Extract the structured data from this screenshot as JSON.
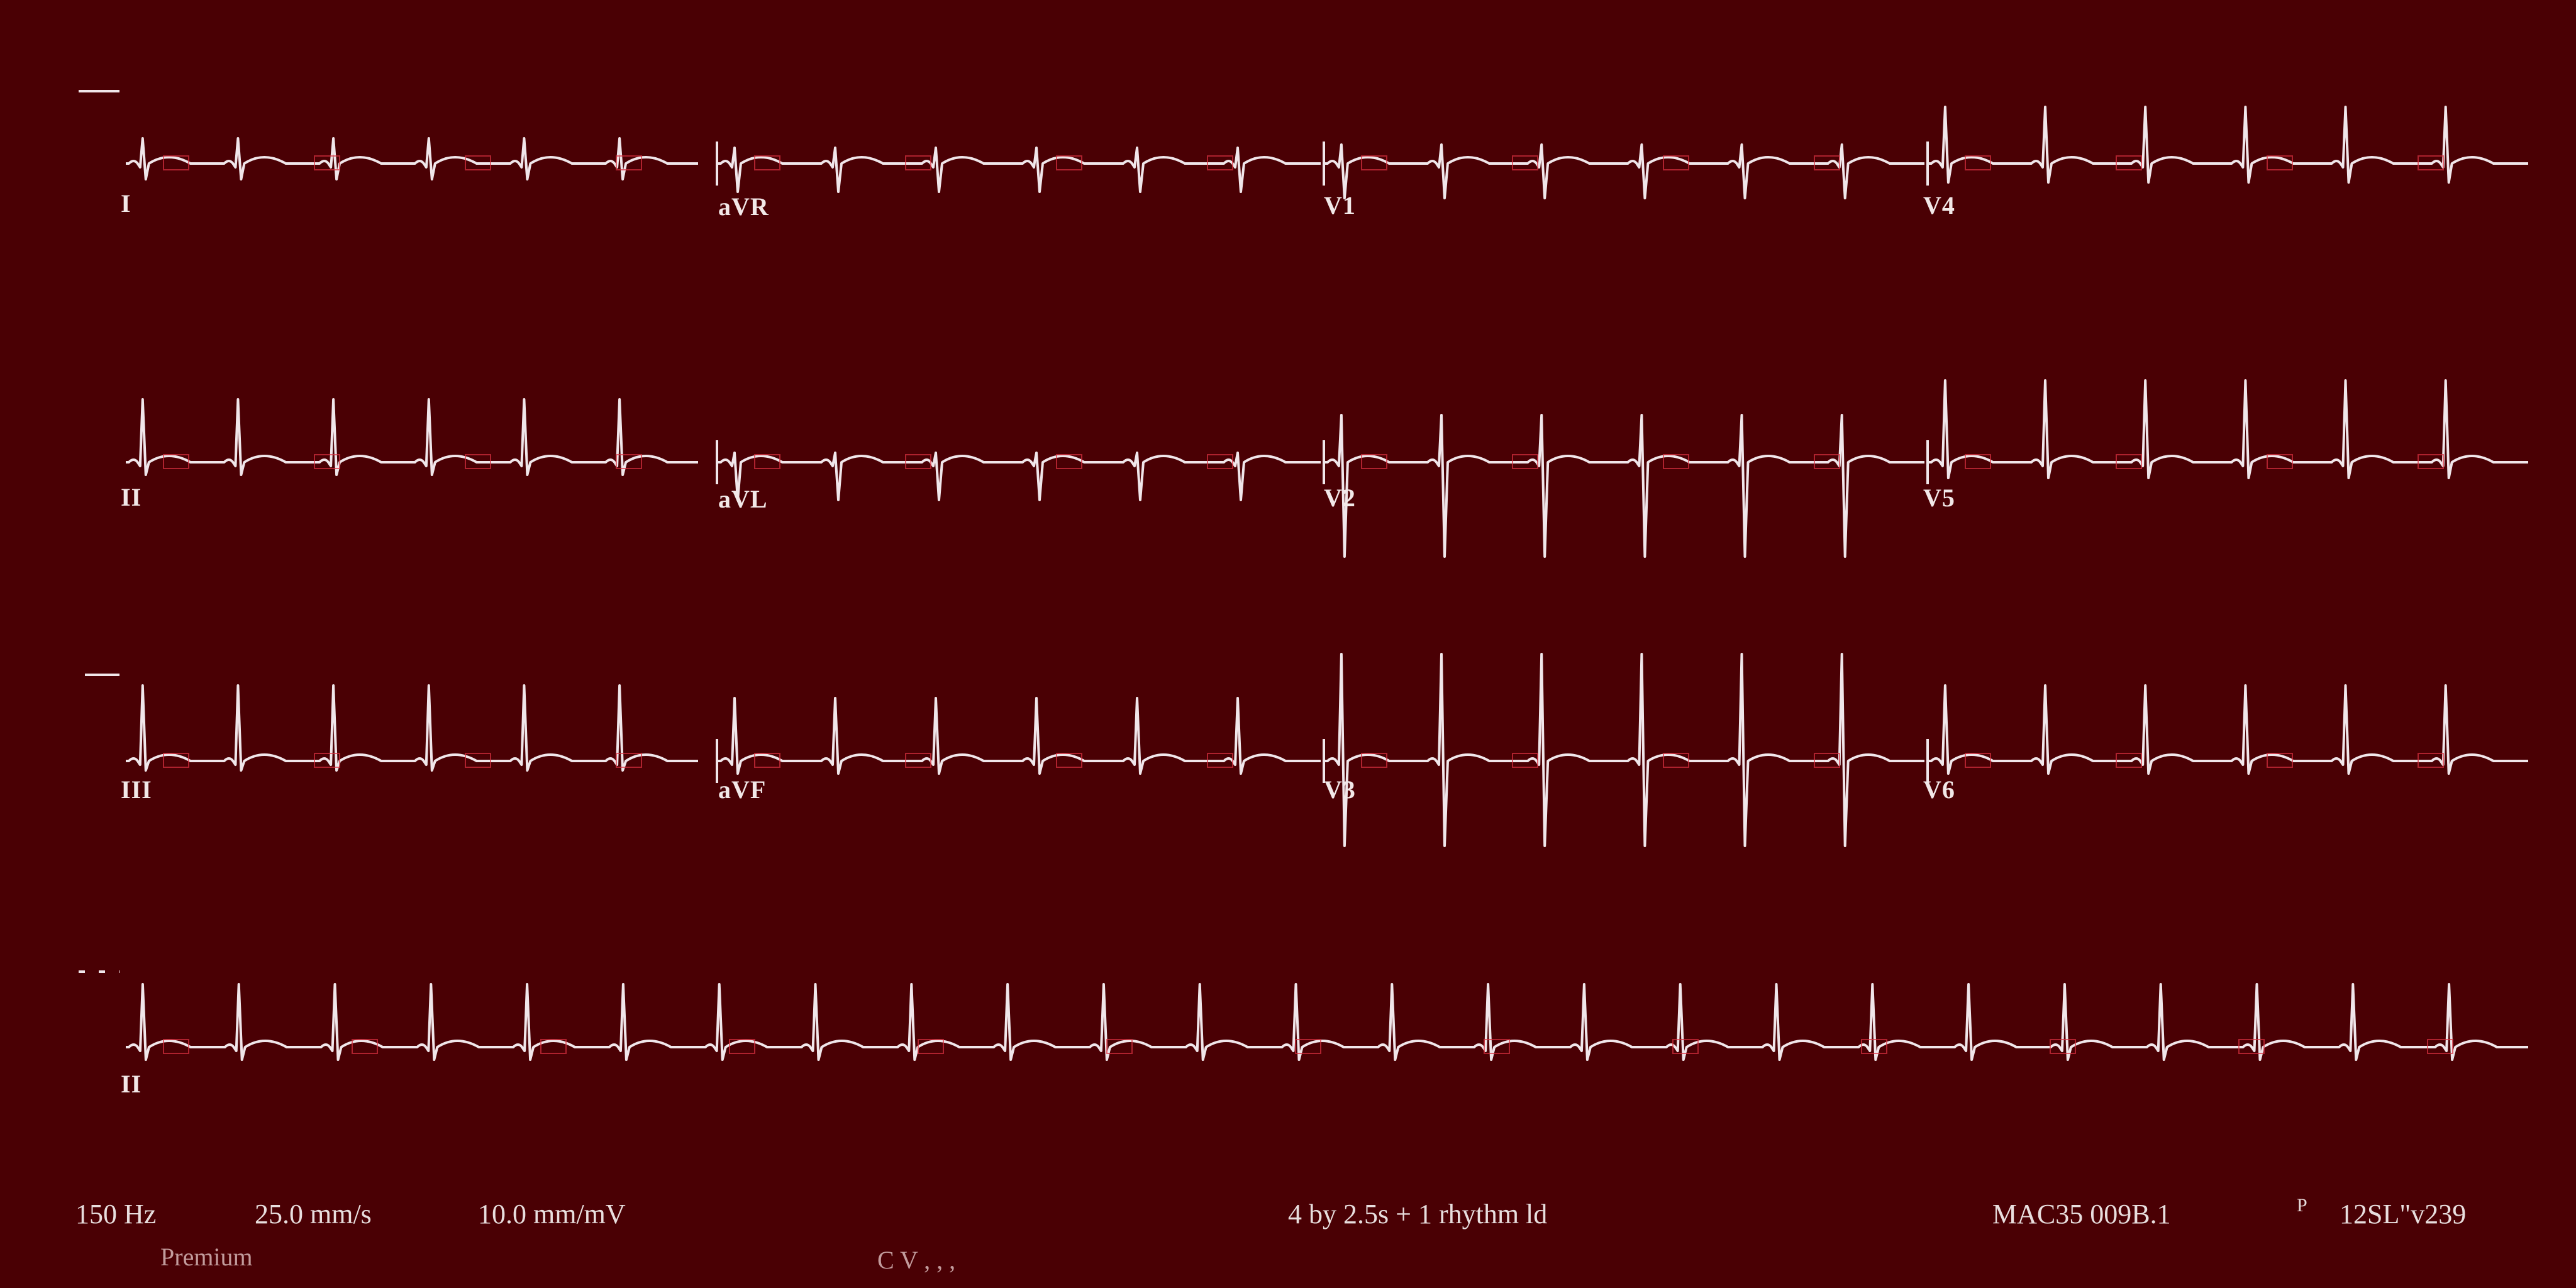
{
  "leads": [
    {
      "id": "I",
      "label": "I"
    },
    {
      "id": "aVR",
      "label": "aVR"
    },
    {
      "id": "V1",
      "label": "V1"
    },
    {
      "id": "V4",
      "label": "V4"
    },
    {
      "id": "II",
      "label": "II"
    },
    {
      "id": "aVL",
      "label": "aVL"
    },
    {
      "id": "V2",
      "label": "V2"
    },
    {
      "id": "V5",
      "label": "V5"
    },
    {
      "id": "III",
      "label": "III"
    },
    {
      "id": "aVF",
      "label": "aVF"
    },
    {
      "id": "V3",
      "label": "V3"
    },
    {
      "id": "V6",
      "label": "V6"
    },
    {
      "id": "II_rhythm",
      "label": "II"
    }
  ],
  "footer": {
    "filter": "150 Hz",
    "speed": "25.0 mm/s",
    "gain": "10.0 mm/mV",
    "format": "4 by 2.5s + 1 rhythm ld",
    "device": "MAC35 009B.1",
    "program": "12SL\"v239",
    "mark": "P",
    "printer": "Premium",
    "faint": "C  V    , ,    ,"
  },
  "colors": {
    "background": "#4a0004",
    "trace": "#f0e6ea",
    "grid_marks": "#d83040"
  }
}
